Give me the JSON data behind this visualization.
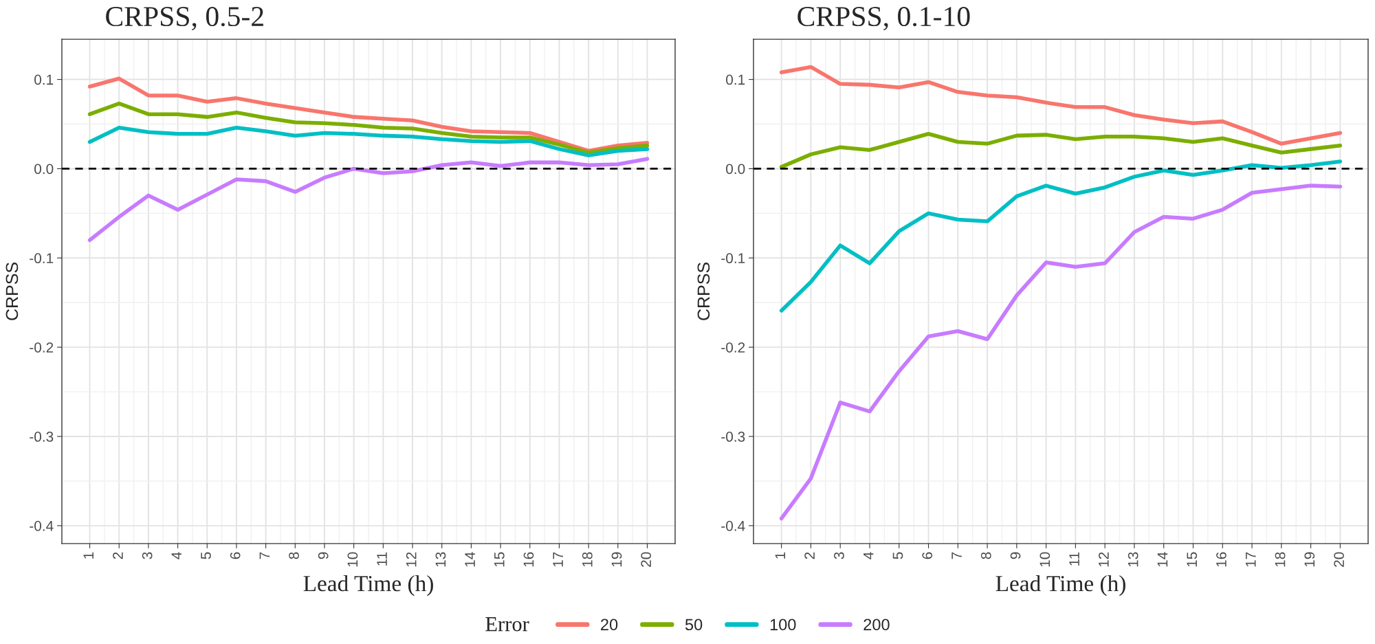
{
  "chart_data": [
    {
      "type": "line",
      "title": "CRPSS, 0.5-2",
      "xlabel": "Lead Time (h)",
      "ylabel": "CRPSS",
      "legend_title": "Error",
      "legend": "bottom",
      "grid": true,
      "x": [
        1,
        2,
        3,
        4,
        5,
        6,
        7,
        8,
        9,
        10,
        11,
        12,
        13,
        14,
        15,
        16,
        17,
        18,
        19,
        20
      ],
      "xlim": [
        0.05,
        20.95
      ],
      "xticks": [
        1,
        2,
        3,
        4,
        5,
        6,
        7,
        8,
        9,
        10,
        11,
        12,
        13,
        14,
        15,
        16,
        17,
        18,
        19,
        20
      ],
      "ylim": [
        -0.42,
        0.145
      ],
      "yticks": [
        {
          "value": -0.4,
          "label": "-0.4"
        },
        {
          "value": -0.3,
          "label": "-0.3"
        },
        {
          "value": -0.2,
          "label": "-0.2"
        },
        {
          "value": -0.1,
          "label": "-0.1"
        },
        {
          "value": 0,
          "label": "0.0"
        },
        {
          "value": 0.1,
          "label": "0.1"
        }
      ],
      "ref_lines": [
        {
          "axis": "y",
          "value": 0,
          "color": "#000000",
          "line_style": "dashed"
        }
      ],
      "series": [
        {
          "name": "20",
          "color": "#f8766d",
          "values": [
            0.092,
            0.101,
            0.082,
            0.082,
            0.075,
            0.079,
            0.073,
            0.068,
            0.063,
            0.058,
            0.056,
            0.054,
            0.047,
            0.042,
            0.041,
            0.04,
            0.03,
            0.02,
            0.026,
            0.029
          ]
        },
        {
          "name": "50",
          "color": "#7cae00",
          "values": [
            0.061,
            0.073,
            0.061,
            0.061,
            0.058,
            0.063,
            0.057,
            0.052,
            0.051,
            0.049,
            0.046,
            0.045,
            0.04,
            0.036,
            0.035,
            0.035,
            0.027,
            0.018,
            0.023,
            0.026
          ]
        },
        {
          "name": "100",
          "color": "#00bfc4",
          "values": [
            0.03,
            0.046,
            0.041,
            0.039,
            0.039,
            0.046,
            0.042,
            0.037,
            0.04,
            0.039,
            0.037,
            0.036,
            0.033,
            0.031,
            0.03,
            0.031,
            0.022,
            0.015,
            0.02,
            0.022
          ]
        },
        {
          "name": "200",
          "color": "#c77cff",
          "values": [
            -0.08,
            -0.054,
            -0.03,
            -0.046,
            -0.029,
            -0.012,
            -0.014,
            -0.026,
            -0.01,
            0,
            -0.005,
            -0.003,
            0.004,
            0.007,
            0.003,
            0.007,
            0.007,
            0.004,
            0.005,
            0.011
          ]
        }
      ]
    },
    {
      "type": "line",
      "title": "CRPSS, 0.1-10",
      "xlabel": "Lead Time (h)",
      "ylabel": "CRPSS",
      "grid": true,
      "x": [
        1,
        2,
        3,
        4,
        5,
        6,
        7,
        8,
        9,
        10,
        11,
        12,
        13,
        14,
        15,
        16,
        17,
        18,
        19,
        20
      ],
      "xlim": [
        0.05,
        20.95
      ],
      "xticks": [
        1,
        2,
        3,
        4,
        5,
        6,
        7,
        8,
        9,
        10,
        11,
        12,
        13,
        14,
        15,
        16,
        17,
        18,
        19,
        20
      ],
      "ylim": [
        -0.42,
        0.145
      ],
      "yticks": [
        {
          "value": -0.4,
          "label": "-0.4"
        },
        {
          "value": -0.3,
          "label": "-0.3"
        },
        {
          "value": -0.2,
          "label": "-0.2"
        },
        {
          "value": -0.1,
          "label": "-0.1"
        },
        {
          "value": 0,
          "label": "0.0"
        },
        {
          "value": 0.1,
          "label": "0.1"
        }
      ],
      "ref_lines": [
        {
          "axis": "y",
          "value": 0,
          "color": "#000000",
          "line_style": "dashed"
        }
      ],
      "series": [
        {
          "name": "20",
          "color": "#f8766d",
          "values": [
            0.108,
            0.114,
            0.095,
            0.094,
            0.091,
            0.097,
            0.086,
            0.082,
            0.08,
            0.074,
            0.069,
            0.069,
            0.06,
            0.055,
            0.051,
            0.053,
            0.041,
            0.028,
            0.034,
            0.04
          ]
        },
        {
          "name": "50",
          "color": "#7cae00",
          "values": [
            0.002,
            0.016,
            0.024,
            0.021,
            0.03,
            0.039,
            0.03,
            0.028,
            0.037,
            0.038,
            0.033,
            0.036,
            0.036,
            0.034,
            0.03,
            0.034,
            0.026,
            0.018,
            0.022,
            0.026
          ]
        },
        {
          "name": "100",
          "color": "#00bfc4",
          "values": [
            -0.159,
            -0.127,
            -0.086,
            -0.106,
            -0.07,
            -0.05,
            -0.057,
            -0.059,
            -0.031,
            -0.019,
            -0.028,
            -0.021,
            -0.009,
            -0.002,
            -0.007,
            -0.002,
            0.004,
            0.001,
            0.004,
            0.008
          ]
        },
        {
          "name": "200",
          "color": "#c77cff",
          "values": [
            -0.392,
            -0.347,
            -0.262,
            -0.272,
            -0.227,
            -0.188,
            -0.182,
            -0.191,
            -0.142,
            -0.105,
            -0.11,
            -0.106,
            -0.071,
            -0.054,
            -0.056,
            -0.046,
            -0.027,
            -0.023,
            -0.019,
            -0.02
          ]
        }
      ]
    }
  ]
}
